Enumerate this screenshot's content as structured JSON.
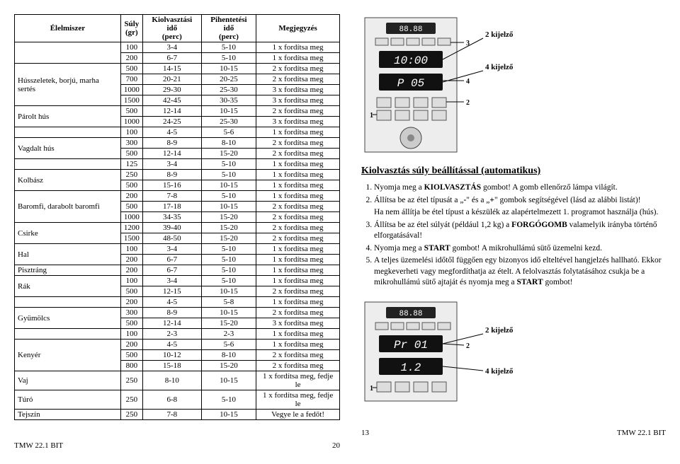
{
  "table": {
    "headers": [
      "Élelmiszer",
      "Súly (gr)",
      "Kiolvasztási idő (perc)",
      "Pihentetési idő (perc)",
      "Megjegyzés"
    ],
    "groups": [
      {
        "food": "",
        "rows": [
          [
            "100",
            "3-4",
            "5-10",
            "1 x fordítsa meg"
          ],
          [
            "200",
            "6-7",
            "5-10",
            "1 x fordítsa meg"
          ]
        ]
      },
      {
        "food": "Hússzeletek, borjú, marha sertés",
        "rows": [
          [
            "500",
            "14-15",
            "10-15",
            "2 x fordítsa meg"
          ],
          [
            "700",
            "20-21",
            "20-25",
            "2 x fordítsa meg"
          ],
          [
            "1000",
            "29-30",
            "25-30",
            "3 x fordítsa meg"
          ],
          [
            "1500",
            "42-45",
            "30-35",
            "3 x fordítsa meg"
          ]
        ]
      },
      {
        "food": "Párolt hús",
        "rows": [
          [
            "500",
            "12-14",
            "10-15",
            "2 x fordítsa meg"
          ],
          [
            "1000",
            "24-25",
            "25-30",
            "3 x fordítsa meg"
          ]
        ]
      },
      {
        "food": "",
        "rows": [
          [
            "100",
            "4-5",
            "5-6",
            "1 x fordítsa meg"
          ]
        ]
      },
      {
        "food": "Vagdalt hús",
        "rows": [
          [
            "300",
            "8-9",
            "8-10",
            "2 x fordítsa meg"
          ],
          [
            "500",
            "12-14",
            "15-20",
            "2 x fordítsa meg"
          ]
        ]
      },
      {
        "food": "",
        "rows": [
          [
            "125",
            "3-4",
            "5-10",
            "1 x fordítsa meg"
          ]
        ]
      },
      {
        "food": "Kolbász",
        "rows": [
          [
            "250",
            "8-9",
            "5-10",
            "1 x fordítsa meg"
          ],
          [
            "500",
            "15-16",
            "10-15",
            "1 x fordítsa meg"
          ]
        ]
      },
      {
        "food": "Baromfi, darabolt baromfi",
        "rows": [
          [
            "200",
            "7-8",
            "5-10",
            "1 x fordítsa meg"
          ],
          [
            "500",
            "17-18",
            "10-15",
            "2 x fordítsa meg"
          ],
          [
            "1000",
            "34-35",
            "15-20",
            "2 x fordítsa meg"
          ]
        ]
      },
      {
        "food": "Csirke",
        "rows": [
          [
            "1200",
            "39-40",
            "15-20",
            "2 x fordítsa meg"
          ],
          [
            "1500",
            "48-50",
            "15-20",
            "2 x fordítsa meg"
          ]
        ]
      },
      {
        "food": "Hal",
        "rows": [
          [
            "100",
            "3-4",
            "5-10",
            "1 x fordítsa meg"
          ],
          [
            "200",
            "6-7",
            "5-10",
            "1 x fordítsa meg"
          ]
        ]
      },
      {
        "food": "Pisztráng",
        "rows": [
          [
            "200",
            "6-7",
            "5-10",
            "1 x fordítsa meg"
          ]
        ]
      },
      {
        "food": "Rák",
        "rows": [
          [
            "100",
            "3-4",
            "5-10",
            "1 x fordítsa meg"
          ],
          [
            "500",
            "12-15",
            "10-15",
            "2 x fordítsa meg"
          ]
        ]
      },
      {
        "food": "",
        "rows": [
          [
            "200",
            "4-5",
            "5-8",
            "1 x fordítsa meg"
          ]
        ]
      },
      {
        "food": "Gyümölcs",
        "rows": [
          [
            "300",
            "8-9",
            "10-15",
            "2 x fordítsa meg"
          ],
          [
            "500",
            "12-14",
            "15-20",
            "3 x fordítsa meg"
          ]
        ]
      },
      {
        "food": "",
        "rows": [
          [
            "100",
            "2-3",
            "2-3",
            "1 x fordítsa meg"
          ]
        ]
      },
      {
        "food": "Kenyér",
        "rows": [
          [
            "200",
            "4-5",
            "5-6",
            "1 x fordítsa meg"
          ],
          [
            "500",
            "10-12",
            "8-10",
            "2 x fordítsa meg"
          ],
          [
            "800",
            "15-18",
            "15-20",
            "2 x fordítsa meg"
          ]
        ]
      },
      {
        "food": "Vaj",
        "rows": [
          [
            "250",
            "8-10",
            "10-15",
            "1 x fordítsa meg, fedje le"
          ]
        ]
      },
      {
        "food": "Túró",
        "rows": [
          [
            "250",
            "6-8",
            "5-10",
            "1 x fordítsa meg, fedje le"
          ]
        ]
      },
      {
        "food": "Tejszín",
        "rows": [
          [
            "250",
            "7-8",
            "10-15",
            "Vegye le a fedőt!"
          ]
        ]
      }
    ]
  },
  "panel1": {
    "label_k2": "2 kijelző",
    "disp1": "10:00",
    "label_k4": "4 kijelző",
    "disp2": "P  05",
    "n1": "1",
    "n2": "2",
    "n3": "3",
    "n4": "4",
    "disp_small": "88.88"
  },
  "heading": "Kiolvasztás súly beállítással (automatikus)",
  "steps": [
    "Nyomja meg a <b>KIOLVASZTÁS</b> gombot! A gomb ellenőrző lámpa világít.",
    "Állítsa be az étel típusát a „<b>-</b>\" és a „<b>+</b>\" gombok segítségével (lásd az alábbi listát)!",
    "Állítsa be az étel súlyát (például 1,2 kg) a <b>FORGÓGOMB</b> valamelyik irányba történő elforgatásával!",
    "Nyomja meg a <b>START</b> gombot! A mikrohullámú sütő üzemelni kezd.",
    "A teljes üzemelési időtől függően egy bizonyos idő elteltével hangjelzés hallható. Ekkor megkeverheti vagy megfordíthatja az ételt. A felolvasztás folytatásához csukja be a mikrohullámú sütő ajtaját és nyomja meg a <b>START</b> gombot!"
  ],
  "step2_note": "Ha nem állítja be étel típust a készülék az alapértelmezett 1. programot használja (hús).",
  "panel2": {
    "disp_small": "88.88",
    "label_k2": "2 kijelző",
    "disp1": "Pr  01",
    "n1": "1",
    "n2": "2",
    "label_k4": "4 kijelző",
    "disp2": "1.2"
  },
  "footer": {
    "left": "TMW 22.1 BIT",
    "pl": "20",
    "pr": "13",
    "right": "TMW 22.1 BIT"
  }
}
